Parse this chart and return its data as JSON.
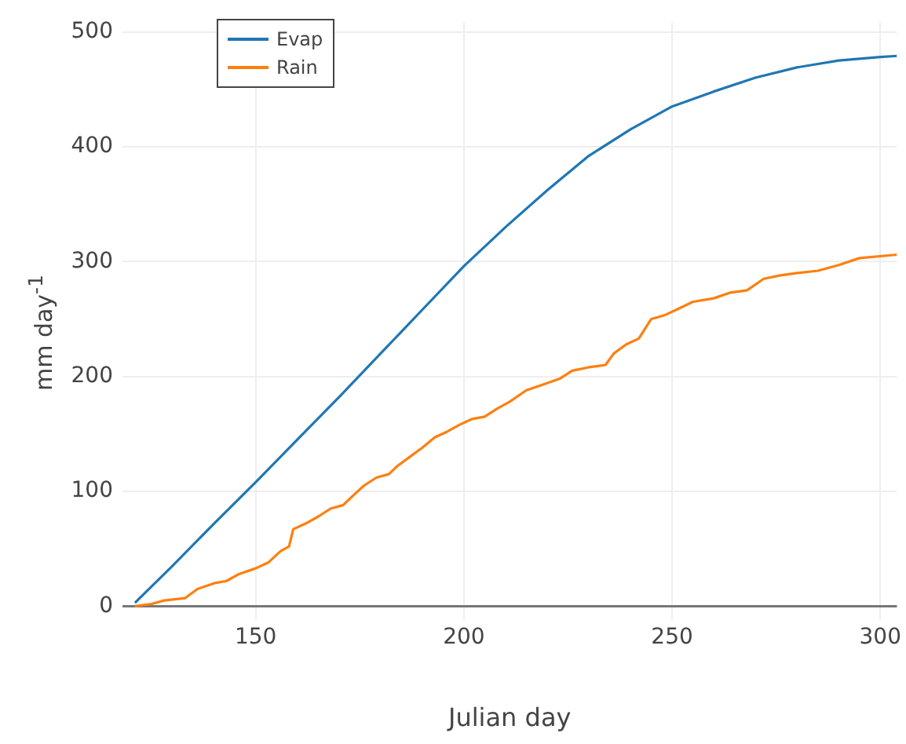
{
  "chart_data": {
    "type": "line",
    "xlabel": "Julian day",
    "ylabel": "mm day$^{-1}$",
    "xlim": [
      118,
      304
    ],
    "xticks": [
      150,
      200,
      250,
      300
    ],
    "ylim": [
      -12,
      508
    ],
    "yticks": [
      0,
      100,
      200,
      300,
      400,
      500
    ],
    "grid": true,
    "legend": "top left",
    "marker": "none",
    "line_style": "solid",
    "series": [
      {
        "name": "Evap",
        "color": "#1f77b4",
        "x": [
          121,
          130,
          140,
          150,
          160,
          170,
          180,
          190,
          200,
          210,
          220,
          230,
          240,
          250,
          260,
          270,
          280,
          290,
          300,
          304
        ],
        "values": [
          3,
          35,
          72,
          108,
          145,
          182,
          220,
          258,
          296,
          330,
          362,
          392,
          415,
          435,
          448,
          460,
          469,
          475,
          478,
          479
        ]
      },
      {
        "name": "Rain",
        "color": "#ff7f0e",
        "x": [
          121,
          125,
          128,
          133,
          136,
          140,
          143,
          146,
          150,
          153,
          156,
          158,
          159,
          162,
          165,
          168,
          171,
          173,
          176,
          179,
          182,
          184,
          187,
          190,
          193,
          196,
          199,
          202,
          205,
          208,
          211,
          215,
          219,
          223,
          226,
          230,
          234,
          236,
          239,
          242,
          245,
          248,
          251,
          255,
          260,
          264,
          268,
          272,
          276,
          280,
          285,
          290,
          295,
          304
        ],
        "values": [
          0,
          2,
          5,
          7,
          15,
          20,
          22,
          28,
          33,
          38,
          48,
          52,
          67,
          72,
          78,
          85,
          88,
          95,
          105,
          112,
          115,
          122,
          130,
          138,
          147,
          152,
          158,
          163,
          165,
          172,
          178,
          188,
          193,
          198,
          205,
          208,
          210,
          220,
          228,
          233,
          250,
          253,
          258,
          265,
          268,
          273,
          275,
          285,
          288,
          290,
          292,
          297,
          303,
          306
        ]
      }
    ]
  }
}
